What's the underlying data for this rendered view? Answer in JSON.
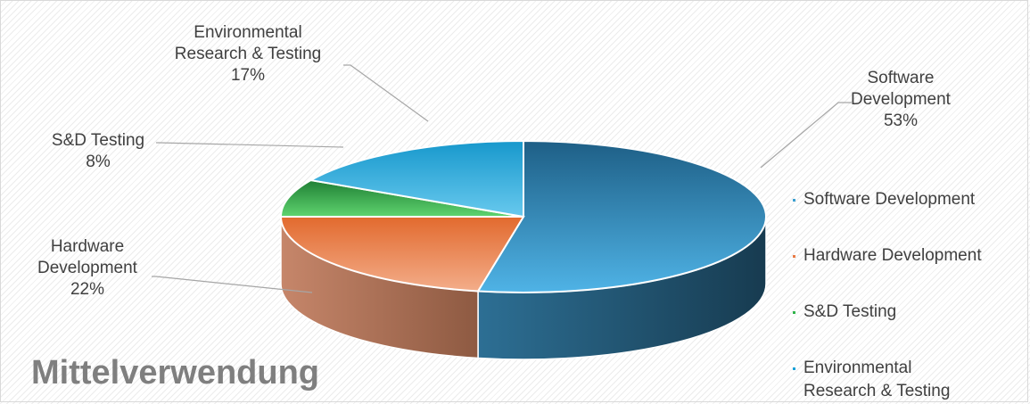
{
  "chart_data": {
    "type": "pie",
    "title": "Mittelverwendung",
    "slices": [
      {
        "label_lines": [
          "Software",
          "Development"
        ],
        "legend_lines": [
          "Software Development"
        ],
        "value": 53,
        "value_label": "53%",
        "color": "#3a9fd0",
        "dark": "#1e4f6b"
      },
      {
        "label_lines": [
          "Hardware",
          "Development"
        ],
        "legend_lines": [
          "Hardware Development"
        ],
        "value": 22,
        "value_label": "22%",
        "color": "#e87a45",
        "dark": "#9a5a3c"
      },
      {
        "label_lines": [
          "S&D Testing"
        ],
        "legend_lines": [
          "S&D Testing"
        ],
        "value": 8,
        "value_label": "8%",
        "color": "#2fb34a",
        "dark": "#1d6e2e"
      },
      {
        "label_lines": [
          "Environmental",
          "Research & Testing"
        ],
        "legend_lines": [
          "Environmental",
          "Research & Testing"
        ],
        "value": 17,
        "value_label": "17%",
        "color": "#1aa1d8",
        "dark": "#0f5f80"
      }
    ],
    "legend_position": "right",
    "style": "3d-pie"
  }
}
